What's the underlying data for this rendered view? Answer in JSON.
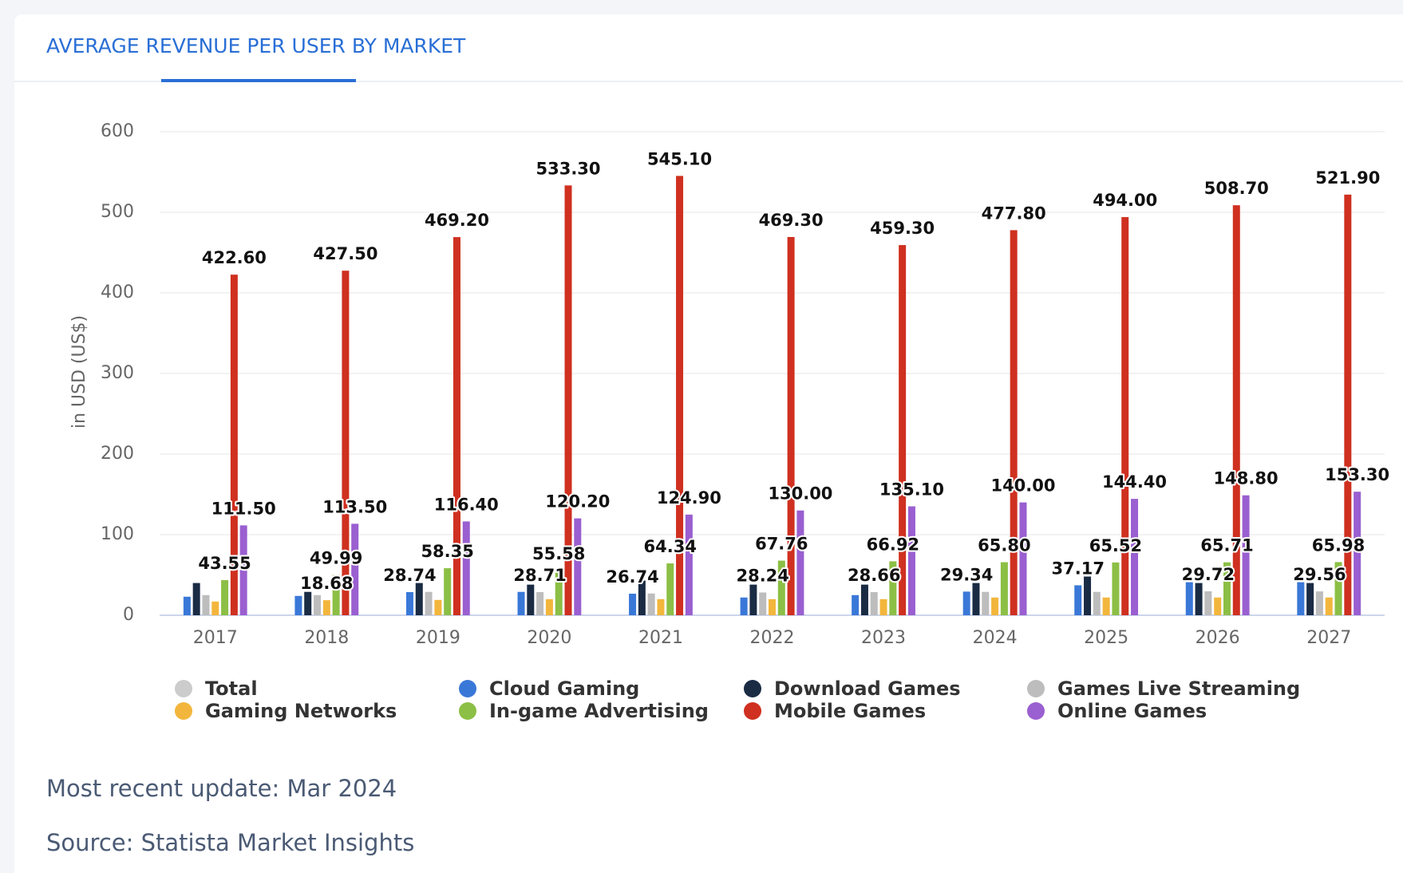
{
  "chart_data": {
    "type": "bar",
    "title": "AVERAGE REVENUE PER USER BY MARKET",
    "y_label": "in USD (US$)",
    "categories": [
      "2017",
      "2018",
      "2019",
      "2020",
      "2021",
      "2022",
      "2023",
      "2024",
      "2025",
      "2026",
      "2027"
    ],
    "ylim": [
      0,
      600
    ],
    "yticks": [
      0,
      100,
      200,
      300,
      400,
      500,
      600
    ],
    "grid": true,
    "legend": "bottom",
    "series": [
      {
        "name": "Total",
        "color": "#cccccc",
        "visible": false,
        "values": [
          null,
          null,
          null,
          null,
          null,
          null,
          null,
          null,
          null,
          null,
          null
        ]
      },
      {
        "name": "Cloud Gaming",
        "color": "#3a78d8",
        "values": [
          23,
          24,
          28.74,
          29,
          26.74,
          22,
          25,
          29.34,
          37.17,
          41,
          41
        ],
        "value_labels": [
          null,
          null,
          "28.74",
          null,
          "26.74",
          null,
          null,
          "29.34",
          "37.17",
          null,
          null
        ]
      },
      {
        "name": "Download Games",
        "color": "#1a2b44",
        "values": [
          40,
          29,
          40,
          38,
          43,
          38,
          38,
          40,
          48,
          40,
          40
        ]
      },
      {
        "name": "Games Live Streaming",
        "color": "#bdbdbd",
        "values": [
          25,
          25,
          29,
          28.71,
          27,
          28.24,
          28.66,
          29,
          29,
          29.72,
          29.56
        ],
        "value_labels": [
          null,
          null,
          null,
          "28.71",
          null,
          "28.24",
          "28.66",
          null,
          null,
          "29.72",
          "29.56"
        ]
      },
      {
        "name": "Gaming Networks",
        "color": "#f3b63c",
        "values": [
          17,
          18.68,
          19,
          20,
          20,
          20,
          20,
          22,
          22,
          22,
          22
        ],
        "value_labels": [
          null,
          "18.68",
          null,
          null,
          null,
          null,
          null,
          null,
          null,
          null,
          null
        ]
      },
      {
        "name": "In-game Advertising",
        "color": "#8cbf45",
        "values": [
          43.55,
          49.99,
          58.35,
          55.58,
          64.34,
          67.76,
          66.92,
          65.8,
          65.52,
          65.71,
          65.98
        ],
        "value_labels": [
          "43.55",
          "49.99",
          "58.35",
          "55.58",
          "64.34",
          "67.76",
          "66.92",
          "65.80",
          "65.52",
          "65.71",
          "65.98"
        ]
      },
      {
        "name": "Mobile Games",
        "color": "#cf3020",
        "values": [
          422.6,
          427.5,
          469.2,
          533.3,
          545.1,
          469.3,
          459.3,
          477.8,
          494,
          508.7,
          521.9
        ],
        "value_labels": [
          "422.60",
          "427.50",
          "469.20",
          "533.30",
          "545.10",
          "469.30",
          "459.30",
          "477.80",
          "494.00",
          "508.70",
          "521.90"
        ]
      },
      {
        "name": "Online Games",
        "color": "#9a5fd0",
        "values": [
          111.5,
          113.5,
          116.4,
          120.2,
          124.9,
          130,
          135.1,
          140,
          144.4,
          148.8,
          153.3
        ],
        "value_labels": [
          "111.50",
          "113.50",
          "116.40",
          "120.20",
          "124.90",
          "130.00",
          "135.10",
          "140.00",
          "144.40",
          "148.80",
          "153.30"
        ]
      }
    ]
  },
  "footer": {
    "update": "Most recent update: Mar 2024",
    "source": "Source: Statista Market Insights"
  }
}
